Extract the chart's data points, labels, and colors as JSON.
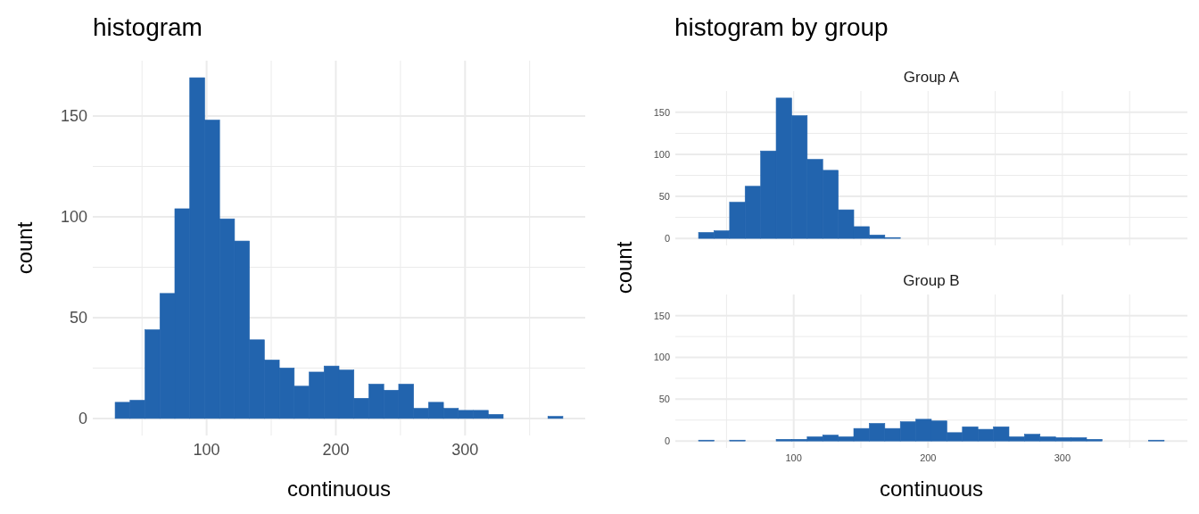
{
  "chart_data": [
    {
      "type": "histogram",
      "title": "histogram",
      "xlabel": "continuous",
      "ylabel": "count",
      "color": "#2264ae",
      "grid": true,
      "bins": [
        29.2,
        40.75,
        52.3,
        63.85,
        75.4,
        86.95,
        98.5,
        110.05,
        121.6,
        133.15,
        144.7,
        156.25,
        167.8,
        179.35,
        190.9,
        202.45,
        214,
        225.55,
        237.1,
        248.65,
        260.2,
        271.75,
        283.3,
        294.85,
        306.4,
        317.95,
        329.5,
        341.05,
        352.6,
        364.15,
        375.7
      ],
      "values": [
        8,
        9,
        44,
        62,
        104,
        169,
        148,
        99,
        88,
        39,
        29,
        25,
        16,
        23,
        26,
        24,
        10,
        17,
        14,
        17,
        5,
        8,
        5,
        4,
        4,
        2,
        0,
        0,
        0,
        1
      ],
      "xlim": [
        11.9,
        393
      ],
      "ylim": [
        -8.45,
        177.45
      ],
      "xticks": [
        {
          "value": 50,
          "label": null
        },
        100,
        {
          "value": 150,
          "label": null
        },
        200,
        {
          "value": 250,
          "label": null
        },
        300,
        {
          "value": 350,
          "label": null
        }
      ],
      "yticks": [
        0,
        {
          "value": 25,
          "label": null
        },
        50,
        {
          "value": 75,
          "label": null
        },
        100,
        {
          "value": 125,
          "label": null
        },
        150
      ]
    },
    {
      "type": "histogram",
      "title": "histogram by group",
      "subtitle": "Group A",
      "ylabel": "count",
      "color": "#2264ae",
      "grid": true,
      "tick_labels": "y",
      "bins": [
        29.2,
        40.75,
        52.3,
        63.85,
        75.4,
        86.95,
        98.5,
        110.05,
        121.6,
        133.15,
        144.7,
        156.25,
        167.8,
        179.35,
        190.9,
        202.45,
        214,
        225.55,
        237.1,
        248.65,
        260.2,
        271.75,
        283.3,
        294.85,
        306.4,
        317.95,
        329.5,
        341.05,
        352.6,
        364.15,
        375.7
      ],
      "values": [
        7,
        9,
        43,
        62,
        104,
        167,
        146,
        94,
        81,
        34,
        14,
        4,
        1,
        0,
        0,
        0,
        0,
        0,
        0,
        0,
        0,
        0,
        0,
        0,
        0,
        0,
        0,
        0,
        0,
        0
      ],
      "xlim": [
        11.9,
        393
      ],
      "ylim": [
        -8.35,
        175.35
      ],
      "xticks": [
        {
          "value": 50,
          "label": null
        },
        {
          "value": 100,
          "label": null
        },
        {
          "value": 150,
          "label": null
        },
        {
          "value": 200,
          "label": null
        },
        {
          "value": 250,
          "label": null
        },
        {
          "value": 300,
          "label": null
        },
        {
          "value": 350,
          "label": null
        }
      ],
      "yticks": [
        0,
        {
          "value": 25,
          "label": null
        },
        50,
        {
          "value": 75,
          "label": null
        },
        100,
        {
          "value": 125,
          "label": null
        },
        150
      ]
    },
    {
      "type": "histogram",
      "subtitle": "Group B",
      "xlabel": "continuous",
      "color": "#2264ae",
      "grid": true,
      "bins": [
        29.2,
        40.75,
        52.3,
        63.85,
        75.4,
        86.95,
        98.5,
        110.05,
        121.6,
        133.15,
        144.7,
        156.25,
        167.8,
        179.35,
        190.9,
        202.45,
        214,
        225.55,
        237.1,
        248.65,
        260.2,
        271.75,
        283.3,
        294.85,
        306.4,
        317.95,
        329.5,
        341.05,
        352.6,
        364.15,
        375.7
      ],
      "values": [
        1,
        0,
        1,
        0,
        0,
        2,
        2,
        5,
        7,
        5,
        15,
        21,
        15,
        23,
        26,
        24,
        10,
        17,
        14,
        17,
        5,
        8,
        5,
        4,
        4,
        2,
        0,
        0,
        0,
        1
      ],
      "xlim": [
        11.9,
        393
      ],
      "ylim": [
        -8.35,
        175.35
      ],
      "xticks": [
        {
          "value": 50,
          "label": null
        },
        100,
        {
          "value": 150,
          "label": null
        },
        200,
        {
          "value": 250,
          "label": null
        },
        300,
        {
          "value": 350,
          "label": null
        }
      ],
      "yticks": [
        0,
        {
          "value": 25,
          "label": null
        },
        50,
        {
          "value": 75,
          "label": null
        },
        100,
        {
          "value": 125,
          "label": null
        },
        150
      ]
    }
  ]
}
